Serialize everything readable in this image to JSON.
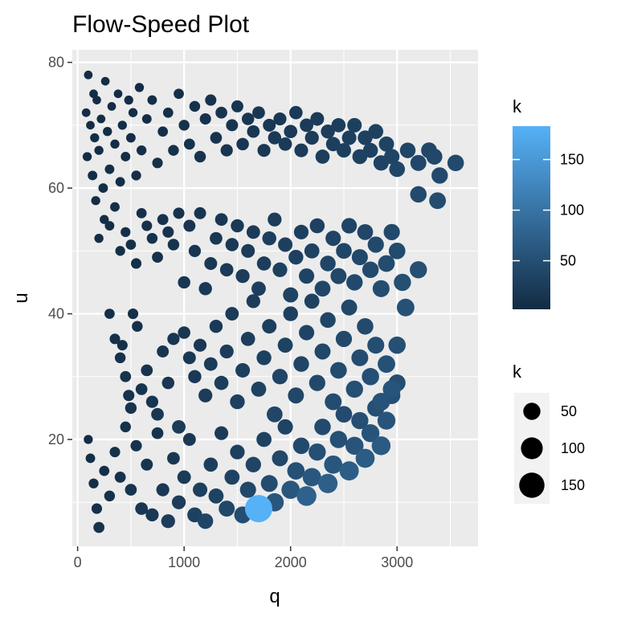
{
  "chart_data": {
    "type": "scatter",
    "title": "Flow-Speed Plot",
    "xlabel": "q",
    "ylabel": "u",
    "xlim": [
      -50,
      3760
    ],
    "ylim": [
      3,
      82
    ],
    "xticks": [
      0,
      1000,
      2000,
      3000
    ],
    "yticks": [
      20,
      40,
      60,
      80
    ],
    "grid": true,
    "color_legend": {
      "title": "k",
      "ticks": [
        50,
        100,
        150
      ],
      "range": [
        2,
        183
      ],
      "low_color": "#132B43",
      "high_color": "#56B1F7"
    },
    "size_legend": {
      "title": "k",
      "entries": [
        50,
        100,
        150
      ],
      "position": "right"
    },
    "points": [
      [
        80,
        72,
        4
      ],
      [
        90,
        65,
        5
      ],
      [
        100,
        78,
        4
      ],
      [
        120,
        70,
        4
      ],
      [
        140,
        62,
        6
      ],
      [
        150,
        75,
        4
      ],
      [
        160,
        68,
        5
      ],
      [
        170,
        58,
        5
      ],
      [
        180,
        74,
        4
      ],
      [
        200,
        66,
        5
      ],
      [
        220,
        71,
        4
      ],
      [
        240,
        60,
        6
      ],
      [
        260,
        77,
        4
      ],
      [
        280,
        69,
        5
      ],
      [
        300,
        63,
        6
      ],
      [
        320,
        73,
        4
      ],
      [
        350,
        67,
        5
      ],
      [
        380,
        75,
        4
      ],
      [
        400,
        61,
        6
      ],
      [
        420,
        70,
        5
      ],
      [
        450,
        65,
        6
      ],
      [
        480,
        74,
        5
      ],
      [
        500,
        68,
        6
      ],
      [
        520,
        72,
        5
      ],
      [
        550,
        62,
        7
      ],
      [
        580,
        76,
        5
      ],
      [
        600,
        66,
        7
      ],
      [
        650,
        71,
        6
      ],
      [
        700,
        74,
        6
      ],
      [
        750,
        64,
        9
      ],
      [
        800,
        69,
        8
      ],
      [
        850,
        72,
        8
      ],
      [
        900,
        66,
        10
      ],
      [
        950,
        75,
        8
      ],
      [
        1000,
        70,
        10
      ],
      [
        1050,
        67,
        11
      ],
      [
        1100,
        73,
        10
      ],
      [
        1150,
        65,
        13
      ],
      [
        1200,
        71,
        12
      ],
      [
        1250,
        74,
        12
      ],
      [
        1300,
        68,
        14
      ],
      [
        1350,
        72,
        14
      ],
      [
        1400,
        66,
        16
      ],
      [
        1450,
        70,
        15
      ],
      [
        1500,
        73,
        15
      ],
      [
        1550,
        67,
        17
      ],
      [
        1600,
        71,
        17
      ],
      [
        1650,
        69,
        18
      ],
      [
        1700,
        72,
        18
      ],
      [
        1750,
        66,
        20
      ],
      [
        1800,
        70,
        19
      ],
      [
        1850,
        68,
        21
      ],
      [
        1900,
        71,
        20
      ],
      [
        1950,
        67,
        22
      ],
      [
        2000,
        69,
        22
      ],
      [
        2050,
        72,
        22
      ],
      [
        2100,
        66,
        24
      ],
      [
        2150,
        70,
        23
      ],
      [
        2200,
        68,
        25
      ],
      [
        2250,
        71,
        24
      ],
      [
        2300,
        65,
        27
      ],
      [
        2350,
        69,
        26
      ],
      [
        2400,
        67,
        28
      ],
      [
        2450,
        70,
        27
      ],
      [
        2500,
        66,
        29
      ],
      [
        2550,
        68,
        29
      ],
      [
        2600,
        70,
        29
      ],
      [
        2650,
        65,
        32
      ],
      [
        2700,
        68,
        31
      ],
      [
        2750,
        66,
        32
      ],
      [
        2800,
        69,
        32
      ],
      [
        2850,
        64,
        35
      ],
      [
        2900,
        67,
        34
      ],
      [
        2950,
        65,
        36
      ],
      [
        3000,
        63,
        38
      ],
      [
        3100,
        66,
        37
      ],
      [
        3200,
        64,
        40
      ],
      [
        3300,
        66,
        39
      ],
      [
        3350,
        65,
        40
      ],
      [
        3400,
        62,
        43
      ],
      [
        3550,
        64,
        44
      ],
      [
        3380,
        58,
        46
      ],
      [
        3200,
        59,
        44
      ],
      [
        200,
        52,
        5
      ],
      [
        250,
        55,
        5
      ],
      [
        300,
        54,
        6
      ],
      [
        350,
        57,
        6
      ],
      [
        400,
        50,
        7
      ],
      [
        450,
        53,
        7
      ],
      [
        500,
        51,
        8
      ],
      [
        550,
        48,
        9
      ],
      [
        600,
        56,
        8
      ],
      [
        650,
        54,
        9
      ],
      [
        700,
        52,
        10
      ],
      [
        750,
        49,
        11
      ],
      [
        800,
        55,
        11
      ],
      [
        850,
        53,
        12
      ],
      [
        900,
        51,
        13
      ],
      [
        950,
        56,
        12
      ],
      [
        1000,
        45,
        17
      ],
      [
        1050,
        54,
        15
      ],
      [
        1100,
        50,
        16
      ],
      [
        1150,
        56,
        15
      ],
      [
        1200,
        44,
        21
      ],
      [
        1250,
        48,
        19
      ],
      [
        1300,
        52,
        18
      ],
      [
        1350,
        55,
        18
      ],
      [
        1400,
        47,
        22
      ],
      [
        1450,
        51,
        21
      ],
      [
        1500,
        54,
        21
      ],
      [
        1550,
        46,
        25
      ],
      [
        1600,
        50,
        24
      ],
      [
        1650,
        53,
        23
      ],
      [
        1700,
        44,
        28
      ],
      [
        1750,
        48,
        27
      ],
      [
        1800,
        52,
        26
      ],
      [
        1850,
        55,
        25
      ],
      [
        1900,
        47,
        30
      ],
      [
        1950,
        51,
        29
      ],
      [
        2000,
        43,
        34
      ],
      [
        2050,
        49,
        31
      ],
      [
        2100,
        53,
        30
      ],
      [
        2150,
        46,
        35
      ],
      [
        2200,
        50,
        33
      ],
      [
        2250,
        54,
        32
      ],
      [
        2300,
        44,
        39
      ],
      [
        2350,
        48,
        37
      ],
      [
        2400,
        52,
        35
      ],
      [
        2450,
        46,
        40
      ],
      [
        2500,
        50,
        38
      ],
      [
        2550,
        54,
        36
      ],
      [
        2600,
        45,
        43
      ],
      [
        2650,
        49,
        41
      ],
      [
        2700,
        53,
        39
      ],
      [
        2750,
        47,
        44
      ],
      [
        2800,
        51,
        42
      ],
      [
        2850,
        44,
        48
      ],
      [
        2900,
        48,
        46
      ],
      [
        2950,
        53,
        42
      ],
      [
        3000,
        50,
        45
      ],
      [
        3050,
        45,
        50
      ],
      [
        3080,
        41,
        54
      ],
      [
        3200,
        47,
        50
      ],
      [
        300,
        40,
        8
      ],
      [
        350,
        36,
        9
      ],
      [
        400,
        33,
        10
      ],
      [
        420,
        35,
        9
      ],
      [
        450,
        30,
        11
      ],
      [
        480,
        27,
        12
      ],
      [
        500,
        25,
        13
      ],
      [
        520,
        40,
        9
      ],
      [
        560,
        38,
        10
      ],
      [
        600,
        28,
        14
      ],
      [
        650,
        31,
        14
      ],
      [
        700,
        26,
        16
      ],
      [
        750,
        24,
        18
      ],
      [
        800,
        34,
        15
      ],
      [
        850,
        29,
        17
      ],
      [
        900,
        36,
        16
      ],
      [
        950,
        22,
        23
      ],
      [
        1000,
        37,
        17
      ],
      [
        1050,
        33,
        19
      ],
      [
        1100,
        30,
        21
      ],
      [
        1150,
        35,
        20
      ],
      [
        1200,
        27,
        25
      ],
      [
        1250,
        32,
        23
      ],
      [
        1300,
        38,
        21
      ],
      [
        1350,
        29,
        27
      ],
      [
        1400,
        34,
        25
      ],
      [
        1450,
        40,
        23
      ],
      [
        1500,
        26,
        31
      ],
      [
        1550,
        31,
        29
      ],
      [
        1600,
        36,
        27
      ],
      [
        1650,
        42,
        25
      ],
      [
        1700,
        28,
        33
      ],
      [
        1750,
        33,
        31
      ],
      [
        1800,
        38,
        29
      ],
      [
        1850,
        24,
        39
      ],
      [
        1900,
        30,
        36
      ],
      [
        1950,
        35,
        33
      ],
      [
        2000,
        40,
        31
      ],
      [
        2050,
        27,
        40
      ],
      [
        2100,
        32,
        37
      ],
      [
        2150,
        37,
        35
      ],
      [
        2200,
        42,
        33
      ],
      [
        2250,
        29,
        42
      ],
      [
        2300,
        34,
        40
      ],
      [
        2350,
        39,
        37
      ],
      [
        2400,
        26,
        47
      ],
      [
        2450,
        31,
        45
      ],
      [
        2500,
        36,
        42
      ],
      [
        2550,
        41,
        40
      ],
      [
        2600,
        28,
        50
      ],
      [
        2650,
        33,
        47
      ],
      [
        2700,
        38,
        44
      ],
      [
        2750,
        30,
        51
      ],
      [
        2800,
        35,
        48
      ],
      [
        2850,
        26,
        56
      ],
      [
        2900,
        32,
        53
      ],
      [
        2950,
        28,
        57
      ],
      [
        3000,
        35,
        51
      ],
      [
        100,
        20,
        5
      ],
      [
        120,
        17,
        6
      ],
      [
        150,
        13,
        7
      ],
      [
        180,
        9,
        9
      ],
      [
        200,
        6,
        11
      ],
      [
        250,
        15,
        8
      ],
      [
        300,
        11,
        10
      ],
      [
        350,
        18,
        9
      ],
      [
        400,
        14,
        11
      ],
      [
        450,
        22,
        10
      ],
      [
        500,
        12,
        14
      ],
      [
        550,
        19,
        12
      ],
      [
        600,
        9,
        18
      ],
      [
        650,
        16,
        15
      ],
      [
        700,
        8,
        20
      ],
      [
        750,
        21,
        14
      ],
      [
        800,
        12,
        20
      ],
      [
        850,
        7,
        25
      ],
      [
        900,
        17,
        18
      ],
      [
        950,
        10,
        25
      ],
      [
        1000,
        14,
        23
      ],
      [
        1050,
        20,
        19
      ],
      [
        1100,
        8,
        32
      ],
      [
        1150,
        12,
        29
      ],
      [
        1200,
        7,
        36
      ],
      [
        1250,
        16,
        27
      ],
      [
        1300,
        11,
        33
      ],
      [
        1350,
        21,
        24
      ],
      [
        1400,
        9,
        40
      ],
      [
        1450,
        14,
        33
      ],
      [
        1500,
        18,
        30
      ],
      [
        1550,
        8,
        48
      ],
      [
        1600,
        12,
        41
      ],
      [
        1650,
        16,
        36
      ],
      [
        1700,
        9,
        183
      ],
      [
        1750,
        20,
        33
      ],
      [
        1800,
        13,
        47
      ],
      [
        1850,
        10,
        60
      ],
      [
        1900,
        17,
        40
      ],
      [
        1950,
        22,
        35
      ],
      [
        2000,
        12,
        60
      ],
      [
        2050,
        15,
        52
      ],
      [
        2100,
        19,
        44
      ],
      [
        2150,
        11,
        75
      ],
      [
        2200,
        14,
        62
      ],
      [
        2250,
        18,
        50
      ],
      [
        2300,
        22,
        44
      ],
      [
        2350,
        13,
        72
      ],
      [
        2400,
        16,
        60
      ],
      [
        2450,
        20,
        51
      ],
      [
        2500,
        24,
        45
      ],
      [
        2550,
        15,
        70
      ],
      [
        2600,
        19,
        58
      ],
      [
        2650,
        23,
        50
      ],
      [
        2700,
        17,
        68
      ],
      [
        2750,
        21,
        57
      ],
      [
        2800,
        25,
        50
      ],
      [
        2850,
        19,
        66
      ],
      [
        2900,
        23,
        57
      ],
      [
        2950,
        27,
        50
      ],
      [
        3000,
        29,
        48
      ]
    ]
  }
}
